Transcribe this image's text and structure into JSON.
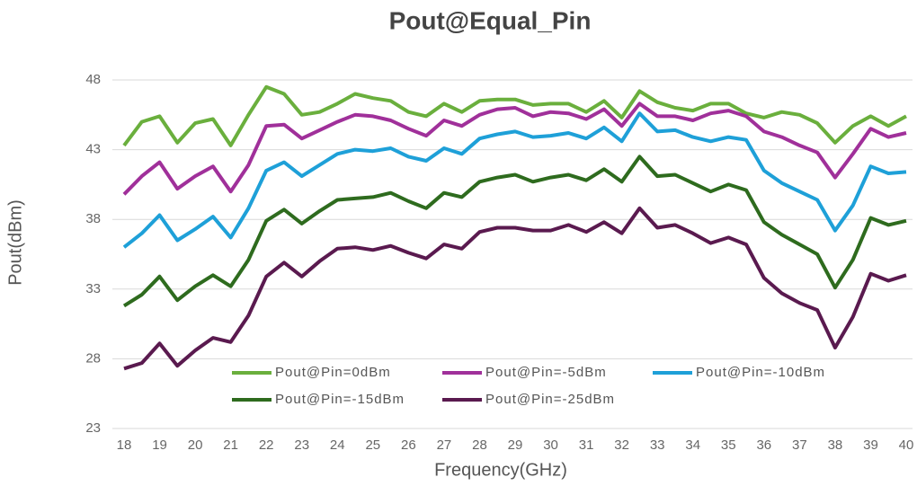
{
  "chart_data": {
    "type": "line",
    "title": "Pout@Equal_Pin",
    "x_label": "Frequency(GHz)",
    "y_label": "Pout(dBm)",
    "x": [
      18,
      18.5,
      19,
      19.5,
      20,
      20.5,
      21,
      21.5,
      22,
      22.5,
      23,
      23.5,
      24,
      24.5,
      25,
      25.5,
      26,
      26.5,
      27,
      27.5,
      28,
      28.5,
      29,
      29.5,
      30,
      30.5,
      31,
      31.5,
      32,
      32.5,
      33,
      33.5,
      34,
      34.5,
      35,
      35.5,
      36,
      36.5,
      37,
      37.5,
      38,
      38.5,
      39,
      39.5,
      40
    ],
    "xlim": [
      18,
      40
    ],
    "xticks": [
      18,
      19,
      20,
      21,
      22,
      23,
      24,
      25,
      26,
      27,
      28,
      29,
      30,
      31,
      32,
      33,
      34,
      35,
      36,
      37,
      38,
      39,
      40
    ],
    "ylim": [
      23,
      48
    ],
    "yticks": [
      23,
      28,
      33,
      38,
      43,
      48
    ],
    "grid": true,
    "series": [
      {
        "name": "Pout@Pin=0dBm",
        "color": "#6aaf3d",
        "values": [
          43.3,
          45.0,
          45.4,
          43.5,
          44.9,
          45.2,
          43.3,
          45.5,
          47.5,
          47.0,
          45.5,
          45.7,
          46.3,
          47.0,
          46.7,
          46.5,
          45.7,
          45.4,
          46.3,
          45.7,
          46.5,
          46.6,
          46.6,
          46.2,
          46.3,
          46.3,
          45.7,
          46.5,
          45.3,
          47.2,
          46.4,
          46.0,
          45.8,
          46.3,
          46.3,
          45.6,
          45.3,
          45.7,
          45.5,
          44.9,
          43.5,
          44.7,
          45.4,
          44.7,
          45.4
        ]
      },
      {
        "name": "Pout@Pin=-5dBm",
        "color": "#a0309a",
        "values": [
          39.8,
          41.1,
          42.1,
          40.2,
          41.1,
          41.8,
          40.0,
          41.9,
          44.7,
          44.8,
          43.8,
          44.4,
          45.0,
          45.5,
          45.4,
          45.1,
          44.5,
          44.0,
          45.1,
          44.7,
          45.5,
          45.9,
          46.0,
          45.4,
          45.7,
          45.6,
          45.2,
          45.9,
          44.7,
          46.3,
          45.4,
          45.4,
          45.1,
          45.6,
          45.8,
          45.4,
          44.3,
          43.9,
          43.3,
          42.8,
          41.0,
          42.7,
          44.5,
          43.9,
          44.2
        ]
      },
      {
        "name": "Pout@Pin=-10dBm",
        "color": "#1ea0d8",
        "values": [
          36.0,
          37.0,
          38.3,
          36.5,
          37.3,
          38.2,
          36.7,
          38.8,
          41.5,
          42.1,
          41.1,
          41.9,
          42.7,
          43.0,
          42.9,
          43.1,
          42.5,
          42.2,
          43.1,
          42.7,
          43.8,
          44.1,
          44.3,
          43.9,
          44.0,
          44.2,
          43.8,
          44.6,
          43.6,
          45.6,
          44.3,
          44.4,
          43.9,
          43.6,
          43.9,
          43.7,
          41.5,
          40.6,
          40.0,
          39.4,
          37.2,
          39.0,
          41.8,
          41.3,
          41.4
        ]
      },
      {
        "name": "Pout@Pin=-15dBm",
        "color": "#2e6b1e",
        "values": [
          31.8,
          32.6,
          33.9,
          32.2,
          33.2,
          34.0,
          33.2,
          35.1,
          37.9,
          38.7,
          37.7,
          38.6,
          39.4,
          39.5,
          39.6,
          39.9,
          39.3,
          38.8,
          39.9,
          39.6,
          40.7,
          41.0,
          41.2,
          40.7,
          41.0,
          41.2,
          40.8,
          41.6,
          40.7,
          42.5,
          41.1,
          41.2,
          40.6,
          40.0,
          40.5,
          40.1,
          37.8,
          36.9,
          36.2,
          35.5,
          33.1,
          35.1,
          38.1,
          37.6,
          37.9
        ]
      },
      {
        "name": "Pout@Pin=-25dBm",
        "color": "#5a1a4f",
        "values": [
          27.3,
          27.7,
          29.1,
          27.5,
          28.6,
          29.5,
          29.2,
          31.1,
          33.9,
          34.9,
          33.9,
          35.0,
          35.9,
          36.0,
          35.8,
          36.1,
          35.6,
          35.2,
          36.2,
          35.9,
          37.1,
          37.4,
          37.4,
          37.2,
          37.2,
          37.6,
          37.1,
          37.8,
          37.0,
          38.8,
          37.4,
          37.6,
          37.0,
          36.3,
          36.7,
          36.2,
          33.8,
          32.7,
          32.0,
          31.5,
          28.8,
          31.0,
          34.1,
          33.6,
          34.0
        ]
      }
    ]
  }
}
